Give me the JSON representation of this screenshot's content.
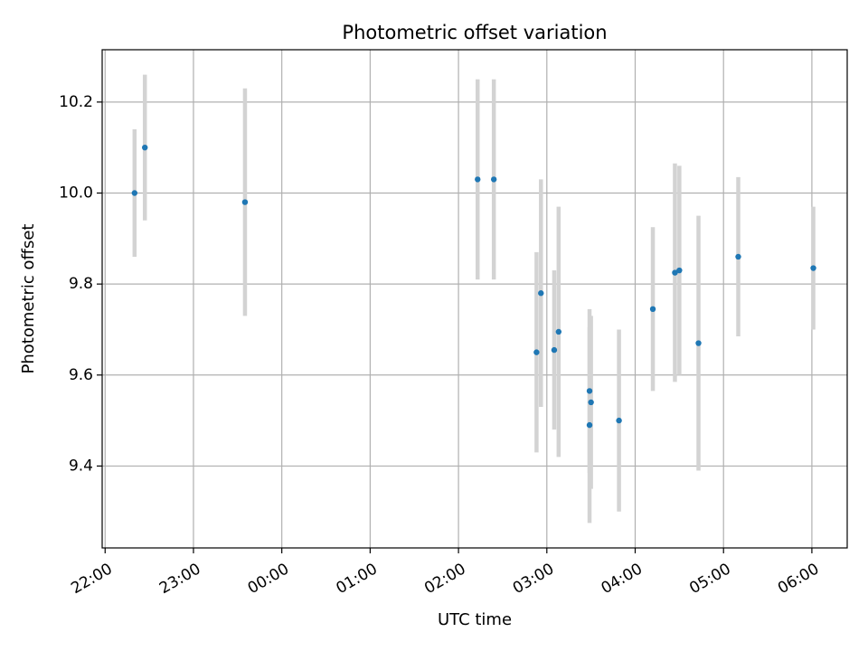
{
  "chart_data": {
    "type": "scatter",
    "title": "Photometric offset variation",
    "xlabel": "UTC time",
    "ylabel": "Photometric offset",
    "grid": true,
    "legend": "none",
    "xlim": [
      "21:58",
      "06:24"
    ],
    "ylim": [
      9.22,
      10.315
    ],
    "x_ticks": [
      "22:00",
      "23:00",
      "00:00",
      "01:00",
      "02:00",
      "03:00",
      "04:00",
      "05:00",
      "06:00"
    ],
    "y_ticks": [
      "9.4",
      "9.6",
      "9.8",
      "10.0",
      "10.2"
    ],
    "colors": {
      "marker": "#1f77b4",
      "errorbar": "#d3d3d3",
      "grid": "#b0b0b0"
    },
    "points": [
      {
        "x": "22:20",
        "y": 10.0,
        "yerr": 0.14
      },
      {
        "x": "22:27",
        "y": 10.1,
        "yerr": 0.16
      },
      {
        "x": "23:35",
        "y": 9.98,
        "yerr": 0.25
      },
      {
        "x": "02:13",
        "y": 10.03,
        "yerr": 0.22
      },
      {
        "x": "02:24",
        "y": 10.03,
        "yerr": 0.22
      },
      {
        "x": "02:53",
        "y": 9.65,
        "yerr": 0.22
      },
      {
        "x": "02:56",
        "y": 9.78,
        "yerr": 0.25
      },
      {
        "x": "03:05",
        "y": 9.655,
        "yerr": 0.175
      },
      {
        "x": "03:08",
        "y": 9.695,
        "yerr": 0.275
      },
      {
        "x": "03:29",
        "y": 9.49,
        "yerr": 0.215
      },
      {
        "x": "03:29",
        "y": 9.565,
        "yerr": 0.18
      },
      {
        "x": "03:30",
        "y": 9.54,
        "yerr": 0.19
      },
      {
        "x": "03:49",
        "y": 9.5,
        "yerr": 0.2
      },
      {
        "x": "04:12",
        "y": 9.745,
        "yerr": 0.18
      },
      {
        "x": "04:27",
        "y": 9.825,
        "yerr": 0.24
      },
      {
        "x": "04:30",
        "y": 9.83,
        "yerr": 0.23
      },
      {
        "x": "04:43",
        "y": 9.67,
        "yerr": 0.28
      },
      {
        "x": "05:10",
        "y": 9.86,
        "yerr": 0.175
      },
      {
        "x": "06:01",
        "y": 9.835,
        "yerr": 0.135
      }
    ]
  }
}
